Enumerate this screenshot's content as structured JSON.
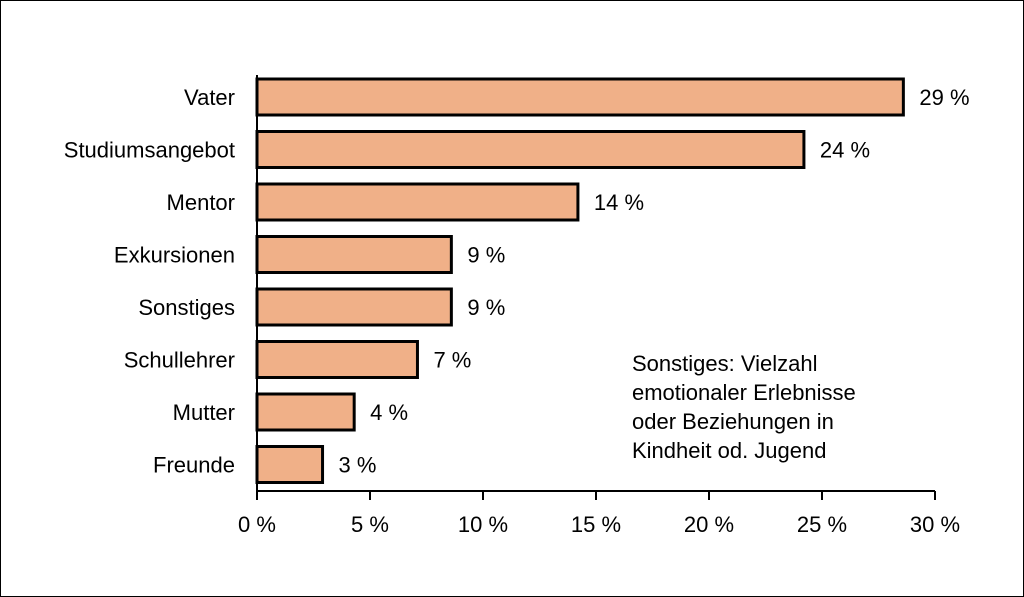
{
  "chart_data": {
    "type": "bar",
    "orientation": "horizontal",
    "categories": [
      "Vater",
      "Studiumsangebot",
      "Mentor",
      "Exkursionen",
      "Sonstiges",
      "Schullehrer",
      "Mutter",
      "Freunde"
    ],
    "values": [
      28.6,
      24.2,
      14.2,
      8.6,
      8.6,
      7.1,
      4.3,
      2.9
    ],
    "value_labels": [
      "29 %",
      "24 %",
      "14 %",
      "9 %",
      "9 %",
      "7 %",
      "4 %",
      "3 %"
    ],
    "xlim": [
      0,
      30
    ],
    "xticks": [
      0,
      5,
      10,
      15,
      20,
      25,
      30
    ],
    "xtick_labels": [
      "0 %",
      "5 %",
      "10 %",
      "15 %",
      "20 %",
      "25 %",
      "30 %"
    ],
    "title": "",
    "xlabel": "",
    "ylabel": "",
    "grid": false,
    "bar_color": "#F0B088",
    "bar_edge_color": "#000000",
    "annotation": {
      "lines": [
        "Sonstiges: Vielzahl",
        "emotionaler Erlebnisse",
        "oder Beziehungen in",
        "Kindheit od. Jugend"
      ]
    }
  }
}
